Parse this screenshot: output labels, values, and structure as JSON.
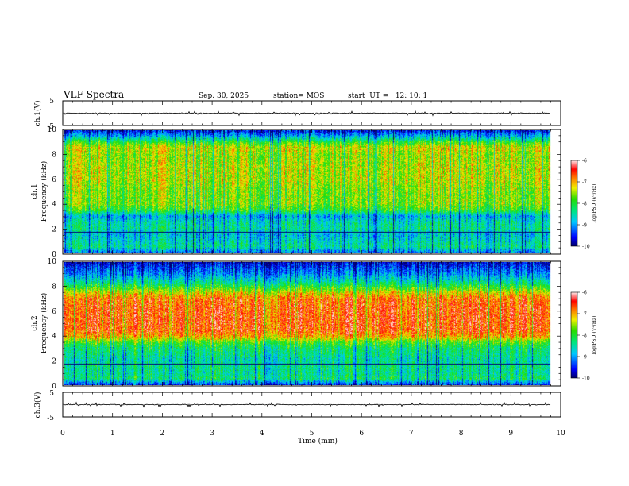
{
  "header": {
    "title": "VLF Spectra",
    "date": "Sep. 30, 2025",
    "station": "station= MOS",
    "start": "start  UT =   12: 10: 1"
  },
  "chart_data": [
    {
      "type": "line",
      "panel": "ch1-waveform",
      "ylabel": "ch.1(V)",
      "yticks": [
        "5",
        "-5"
      ],
      "ylim": [
        -5,
        5
      ],
      "xlim": [
        0,
        10
      ],
      "level": 0
    },
    {
      "type": "heatmap",
      "panel": "ch1-spectrogram",
      "ylabel": "ch.1",
      "ylabel2": "Frequency (kHz)",
      "yticks": [
        "0",
        "2",
        "4",
        "6",
        "8",
        "10"
      ],
      "ylim": [
        0,
        10
      ],
      "xlim": [
        0,
        10
      ],
      "data_end_min": 9.8,
      "profile": [
        [
          0,
          -9.2
        ],
        [
          0.5,
          -8.4
        ],
        [
          1,
          -8.6
        ],
        [
          1.5,
          -8.8
        ],
        [
          2,
          -8.4
        ],
        [
          2.5,
          -8.5
        ],
        [
          3,
          -8.9
        ],
        [
          3.5,
          -7.9
        ],
        [
          4,
          -7.6
        ],
        [
          5,
          -7.6
        ],
        [
          6,
          -7.4
        ],
        [
          7,
          -7.4
        ],
        [
          8,
          -7.5
        ],
        [
          8.6,
          -7.3
        ],
        [
          9,
          -7.8
        ],
        [
          9.5,
          -8.8
        ],
        [
          10,
          -9.6
        ]
      ],
      "colorbar": {
        "label": "log(PSD)(V²/Hz)",
        "ticks": [
          "-6",
          "-7",
          "-8",
          "-9",
          "-10"
        ],
        "range": [
          -10,
          -6
        ]
      }
    },
    {
      "type": "heatmap",
      "panel": "ch2-spectrogram",
      "ylabel": "ch.2",
      "ylabel2": "Frequency (kHz)",
      "yticks": [
        "0",
        "2",
        "4",
        "6",
        "8",
        "10"
      ],
      "ylim": [
        0,
        10
      ],
      "xlim": [
        0,
        10
      ],
      "data_end_min": 9.8,
      "profile": [
        [
          0,
          -9.4
        ],
        [
          0.5,
          -8.2
        ],
        [
          1,
          -8.4
        ],
        [
          1.5,
          -8.3
        ],
        [
          2,
          -8.5
        ],
        [
          2.5,
          -8.3
        ],
        [
          3,
          -8.2
        ],
        [
          3.5,
          -7.7
        ],
        [
          4,
          -6.9
        ],
        [
          4.5,
          -6.6
        ],
        [
          5,
          -6.6
        ],
        [
          6,
          -6.6
        ],
        [
          7,
          -6.7
        ],
        [
          7.5,
          -7.2
        ],
        [
          8,
          -7.9
        ],
        [
          8.5,
          -8.5
        ],
        [
          9,
          -9.0
        ],
        [
          9.5,
          -9.3
        ],
        [
          10,
          -9.7
        ]
      ],
      "colorbar": {
        "label": "log(PSD)(V²/Hz)",
        "ticks": [
          "-6",
          "-7",
          "-8",
          "-9",
          "-10"
        ],
        "range": [
          -10,
          -6
        ]
      }
    },
    {
      "type": "line",
      "panel": "ch3-waveform",
      "ylabel": "ch.3(V)",
      "yticks": [
        "5",
        "-5"
      ],
      "ylim": [
        -5,
        5
      ],
      "xlim": [
        0,
        10
      ],
      "level": 0
    }
  ],
  "xaxis": {
    "label": "Time (min)",
    "ticks": [
      "0",
      "1",
      "2",
      "3",
      "4",
      "5",
      "6",
      "7",
      "8",
      "9",
      "10"
    ]
  }
}
